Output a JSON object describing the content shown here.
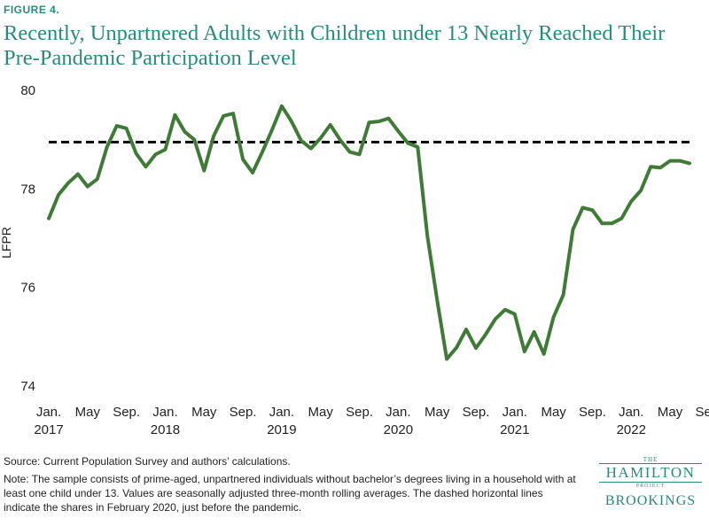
{
  "figure_label": "FIGURE 4.",
  "title": "Recently, Unpartnered Adults with Children under 13 Nearly Reached Their Pre-Pandemic Participation Level",
  "source": "Source: Current Population Survey and authors’ calculations.",
  "note": "Note: The sample consists of prime-aged, unpartnered individuals without bachelor’s degrees living in a household with at least one child under 13. Values are seasonally adjusted three-month rolling averages. The dashed horizontal lines indicate the shares in February 2020, just before the pandemic.",
  "logo": {
    "the": "THE",
    "hamilton": "HAMILTON",
    "project": "PROJECT",
    "brookings": "BROOKINGS"
  },
  "colors": {
    "title": "#2a8a7c",
    "series": "#3f7a36",
    "reference": "#000000"
  },
  "chart_data": {
    "type": "line",
    "title": "",
    "ylabel": "LFPR",
    "xlabel": "",
    "ylim": [
      74,
      80
    ],
    "yticks": [
      74,
      76,
      78,
      80
    ],
    "grid": false,
    "x_ticks": [
      {
        "label": "Jan.",
        "sub": "2017"
      },
      {
        "label": "May",
        "sub": ""
      },
      {
        "label": "Sep.",
        "sub": ""
      },
      {
        "label": "Jan.",
        "sub": "2018"
      },
      {
        "label": "May",
        "sub": ""
      },
      {
        "label": "Sep.",
        "sub": ""
      },
      {
        "label": "Jan.",
        "sub": "2019"
      },
      {
        "label": "May",
        "sub": ""
      },
      {
        "label": "Sep.",
        "sub": ""
      },
      {
        "label": "Jan.",
        "sub": "2020"
      },
      {
        "label": "May",
        "sub": ""
      },
      {
        "label": "Sep.",
        "sub": ""
      },
      {
        "label": "Jan.",
        "sub": "2021"
      },
      {
        "label": "May",
        "sub": ""
      },
      {
        "label": "Sep.",
        "sub": ""
      },
      {
        "label": "Jan.",
        "sub": "2022"
      },
      {
        "label": "May",
        "sub": ""
      },
      {
        "label": "Sep.",
        "sub": ""
      }
    ],
    "x_start": "2017-01",
    "x_end": "2022-09",
    "reference_line": {
      "value": 78.95,
      "style": "dashed"
    },
    "series": [
      {
        "values": [
          77.4,
          77.88,
          78.12,
          78.3,
          78.05,
          78.2,
          78.85,
          79.28,
          79.23,
          78.72,
          78.45,
          78.7,
          78.8,
          79.5,
          79.16,
          79.0,
          78.37,
          79.08,
          79.48,
          79.53,
          78.6,
          78.33,
          78.75,
          79.2,
          79.68,
          79.37,
          78.98,
          78.82,
          79.03,
          79.3,
          79.0,
          78.75,
          78.7,
          79.35,
          79.37,
          79.43,
          79.17,
          78.93,
          78.85,
          77.05,
          75.75,
          74.55,
          74.78,
          75.15,
          74.77,
          75.05,
          75.36,
          75.55,
          75.46,
          74.7,
          75.1,
          74.65,
          75.4,
          75.85,
          77.18,
          77.62,
          77.57,
          77.3,
          77.3,
          77.4,
          77.75,
          77.97,
          78.45,
          78.43,
          78.57,
          78.57,
          78.52
        ]
      }
    ]
  }
}
